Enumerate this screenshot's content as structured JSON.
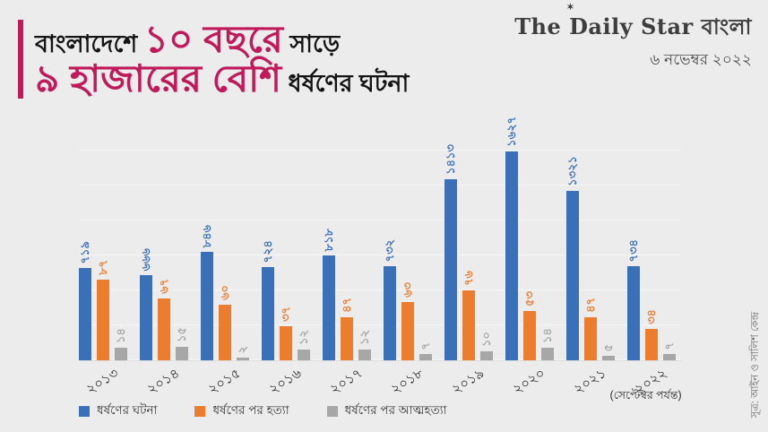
{
  "colors": {
    "accent": "#c01a5b",
    "background": "#ececec",
    "blue": "#3a70b8",
    "orange": "#ec7c2e",
    "gray": "#a7a7a7"
  },
  "title": {
    "line1": [
      {
        "text": "বাংলাদেশে ",
        "accent": false
      },
      {
        "text": "১০ বছরে",
        "accent": true
      },
      {
        "text": " সাড়ে",
        "accent": false
      }
    ],
    "line2": [
      {
        "text": "৯ হাজারের বেশি",
        "accent": true
      },
      {
        "text": " ধর্ষণের ঘটনা",
        "accent": false
      }
    ]
  },
  "masthead": {
    "logo": "The Daily Star",
    "logo_suffix": " বাংলা",
    "date": "৬ নভেম্বর ২০২২"
  },
  "chart_data": {
    "type": "bar",
    "title": "বাংলাদেশে ১০ বছরে সাড়ে ৯ হাজারের বেশি ধর্ষণের ঘটনা",
    "categories": [
      "২০১৩",
      "২০১৪",
      "২০১৫",
      "২০১৬",
      "২০১৭",
      "২০১৮",
      "২০১৯",
      "২০২০",
      "২০২১",
      "২০২২"
    ],
    "categories_note": {
      "index": 9,
      "text": "(সেপ্টেম্বর পর্যন্ত)"
    },
    "series": [
      {
        "name": "ধর্ষণের ঘটনা",
        "color": "#3a70b8",
        "values": [
          719,
          666,
          846,
          724,
          818,
          732,
          1413,
          1627,
          1321,
          734
        ],
        "labels": [
          "৭১৯",
          "৬৬৬",
          "৮৪৬",
          "৭২৪",
          "৮১৮",
          "৭৩২",
          "১৪১৩",
          "১৬২৭",
          "১৩২১",
          "৭৩৪"
        ]
      },
      {
        "name": "ধর্ষণের পর হত্যা",
        "color": "#ec7c2e",
        "values": [
          87,
          67,
          60,
          37,
          47,
          63,
          76,
          53,
          47,
          34
        ],
        "labels": [
          "৮৭",
          "৬৭",
          "৬০",
          "৩৭",
          "৪৭",
          "৬৩",
          "৭৬",
          "৫৩",
          "৪৭",
          "৩৪"
        ]
      },
      {
        "name": "ধর্ষণের পর আত্মহত্যা",
        "color": "#a7a7a7",
        "values": [
          14,
          15,
          2,
          12,
          12,
          7,
          10,
          14,
          5,
          7
        ],
        "labels": [
          "১৪",
          "১৫",
          "২",
          "১২",
          "১২",
          "৭",
          "১০",
          "১৪",
          "৫",
          "৭"
        ]
      }
    ],
    "grid": "horizontal",
    "legend_position": "bottom",
    "source": "সূত্র: আইন ও সালিশ কেন্দ্র"
  }
}
